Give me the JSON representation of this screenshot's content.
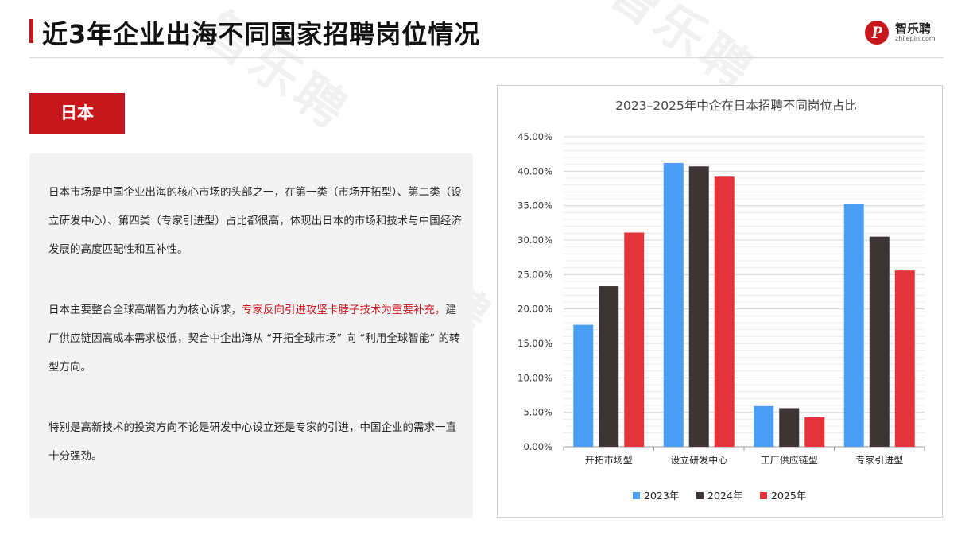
{
  "header": {
    "title": "近3年企业出海不同国家招聘岗位情况",
    "logo_name": "智乐聘",
    "logo_domain": "zhilepin.com",
    "logo_mark": "P"
  },
  "section": {
    "country": "日本"
  },
  "text": {
    "p1": "日本市场是中国企业出海的核心市场的头部之一，在第一类（市场开拓型）、第二类（设立研发中心）、第四类（专家引进型）占比都很高，体现出日本的市场和技术与中国经济发展的高度匹配性和互补性。",
    "p2_before": "日本主要整合全球高端智力为核心诉求，",
    "p2_highlight": "专家反向引进攻坚卡脖子技术为重要补充，",
    "p2_after": "建厂供应链因高成本需求极低，契合中企出海从 “开拓全球市场” 向 “利用全球智能” 的转型方向。",
    "p3": "特别是高新技术的投资方向不论是研发中心设立还是专家的引进，中国企业的需求一直十分强劲。"
  },
  "watermark": "智乐聘",
  "colors": {
    "accent": "#c8161d",
    "series_2023": "#4a9ff5",
    "series_2024": "#3d3436",
    "series_2025": "#e5333c"
  },
  "chart_data": {
    "type": "bar",
    "title": "2023–2025年中企在日本招聘不同岗位占比",
    "categories": [
      "开拓市场型",
      "设立研发中心",
      "工厂供应链型",
      "专家引进型"
    ],
    "series": [
      {
        "name": "2023年",
        "values": [
          17.7,
          41.2,
          5.9,
          35.3
        ]
      },
      {
        "name": "2024年",
        "values": [
          23.3,
          40.7,
          5.6,
          30.5
        ]
      },
      {
        "name": "2025年",
        "values": [
          31.1,
          39.2,
          4.3,
          25.6
        ]
      }
    ],
    "ylim": [
      0,
      45
    ],
    "yticks": [
      "0.00%",
      "5.00%",
      "10.00%",
      "15.00%",
      "20.00%",
      "25.00%",
      "30.00%",
      "35.00%",
      "40.00%",
      "45.00%"
    ],
    "grid": true,
    "legend": "bottom"
  }
}
